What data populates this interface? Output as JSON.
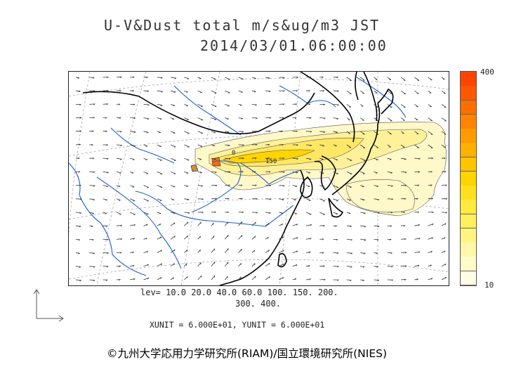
{
  "header": {
    "title_line1": "U-V&Dust total m/s&ug/m3 JST",
    "title_line2": "2014/03/01.06:00:00"
  },
  "colorbar": {
    "max_label": "400",
    "min_label": "10",
    "colors": [
      "#fffde8",
      "#fffbc8",
      "#fff8a8",
      "#fff480",
      "#fff060",
      "#ffea40",
      "#ffe020",
      "#ffd400",
      "#ffc400",
      "#ffb000",
      "#ff9a00",
      "#ff8400",
      "#ff6e00",
      "#ff5800",
      "#ff4400"
    ]
  },
  "levels": {
    "line1": "lev= 10.0 20.0 40.0 60.0 100. 150. 200.",
    "line2": "300. 400."
  },
  "units": {
    "line": "XUNIT = 6.000E+01, YUNIT = 6.000E+01"
  },
  "map": {
    "contour_label_a": "150",
    "contour_label_b": "0",
    "dust_color_low": "#fff7c0",
    "dust_color_mid": "#ffe766",
    "dust_color_high": "#ff6a00",
    "coast_color": "#000000",
    "river_color": "#1a5fd6",
    "grid_color": "#888888"
  },
  "footer": {
    "credit": "©九州大学応用力学研究所(RIAM)/国立環境研究所(NIES)"
  }
}
